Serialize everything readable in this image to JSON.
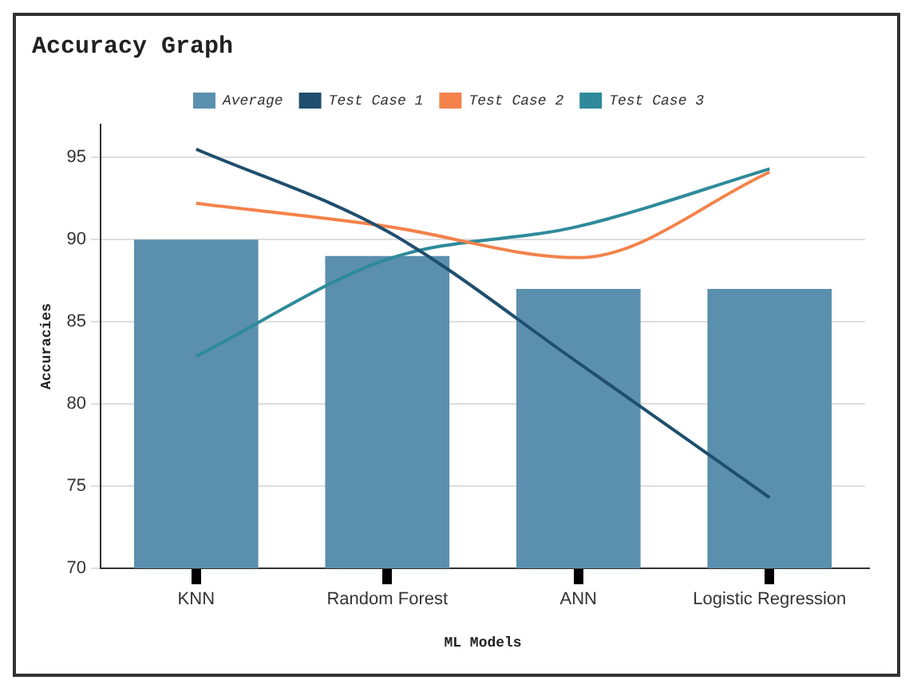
{
  "chart_data": {
    "type": "bar",
    "title": "Accuracy Graph",
    "xlabel": "ML Models",
    "ylabel": "Accuracies",
    "categories": [
      "KNN",
      "Random Forest",
      "ANN",
      "Logistic Regression"
    ],
    "series": [
      {
        "name": "Average",
        "color": "#5a8fae",
        "values": [
          90,
          89,
          87,
          87
        ]
      },
      {
        "name": "Test Case 1",
        "type": "line",
        "color": "#1f4e6e",
        "values": [
          95.5,
          90.5,
          82.5,
          74.3
        ]
      },
      {
        "name": "Test Case 2",
        "type": "line",
        "color": "#f4824a",
        "values": [
          92.2,
          90.8,
          88.9,
          94.1
        ]
      },
      {
        "name": "Test Case 3",
        "type": "line",
        "color": "#2e8a9a",
        "values": [
          82.9,
          88.8,
          90.8,
          94.3
        ]
      }
    ],
    "ylim": [
      70,
      97
    ],
    "yticks": [
      70,
      75,
      80,
      85,
      90,
      95
    ],
    "grid": "y",
    "legend": "top",
    "marker": "none"
  }
}
